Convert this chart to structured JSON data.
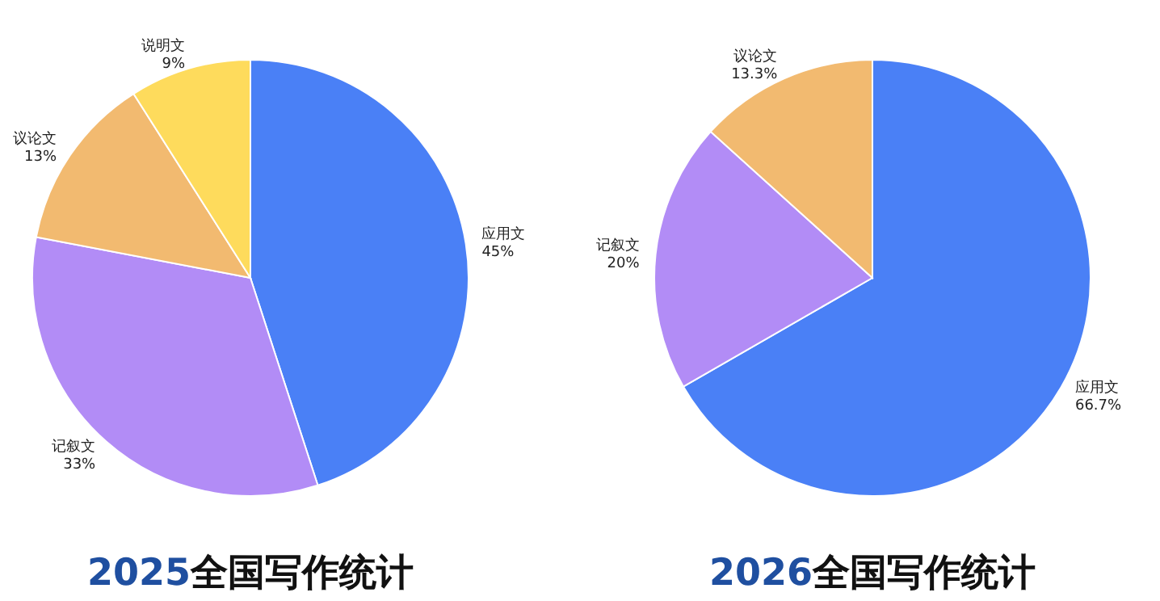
{
  "chart_data": [
    {
      "type": "pie",
      "title": "2025全国写作统计",
      "categories": [
        "应用文",
        "记叙文",
        "议论文",
        "说明文"
      ],
      "values": [
        45,
        33,
        13,
        9
      ],
      "value_labels": [
        "45%",
        "33%",
        "13%",
        "9%"
      ],
      "colors": [
        "#4a80f6",
        "#b28cf6",
        "#f2ba70",
        "#fedb5c"
      ]
    },
    {
      "type": "pie",
      "title": "2026全国写作统计",
      "categories": [
        "应用文",
        "记叙文",
        "议论文"
      ],
      "values": [
        66.7,
        20,
        13.3
      ],
      "value_labels": [
        "66.7%",
        "20%",
        "13.3%"
      ],
      "colors": [
        "#4a80f6",
        "#b28cf6",
        "#f2ba70"
      ]
    }
  ]
}
